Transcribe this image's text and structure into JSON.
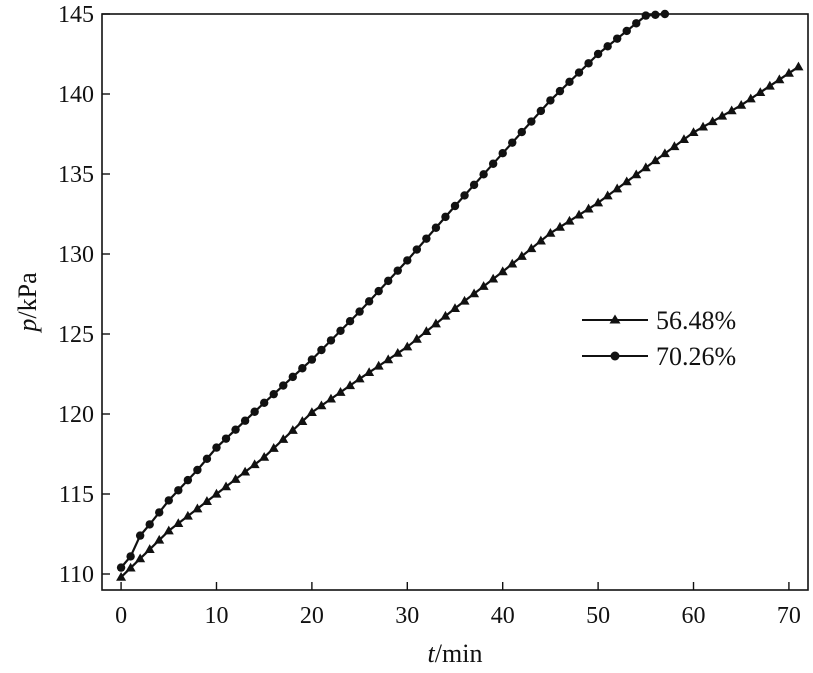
{
  "chart_data": {
    "type": "line",
    "xlabel_var": "t",
    "xlabel_unit": "/min",
    "ylabel_var": "p",
    "ylabel_unit": "/kPa",
    "xlim": [
      -2,
      72
    ],
    "ylim": [
      109,
      145
    ],
    "xticks": [
      0,
      10,
      20,
      30,
      40,
      50,
      60,
      70
    ],
    "yticks": [
      110,
      115,
      120,
      125,
      130,
      135,
      140,
      145
    ],
    "grid": false,
    "legend_position": "right",
    "series": [
      {
        "name": "56.48%",
        "marker": "triangle",
        "color": "#111111",
        "x": [
          0,
          5,
          10,
          15,
          20,
          25,
          30,
          35,
          40,
          45,
          50,
          55,
          60,
          65,
          71
        ],
        "y": [
          109.8,
          112.7,
          115.0,
          117.3,
          120.1,
          122.2,
          124.2,
          126.6,
          128.9,
          131.3,
          133.2,
          135.4,
          137.6,
          139.3,
          141.7
        ]
      },
      {
        "name": "70.26%",
        "marker": "circle",
        "color": "#111111",
        "x": [
          0,
          1,
          2,
          3,
          5,
          8,
          10,
          15,
          20,
          25,
          30,
          35,
          40,
          45,
          50,
          55,
          57
        ],
        "y": [
          110.4,
          111.1,
          112.4,
          113.1,
          114.6,
          116.5,
          117.9,
          120.7,
          123.4,
          126.4,
          129.6,
          133.0,
          136.3,
          139.6,
          142.5,
          144.9,
          145.0
        ]
      }
    ]
  }
}
